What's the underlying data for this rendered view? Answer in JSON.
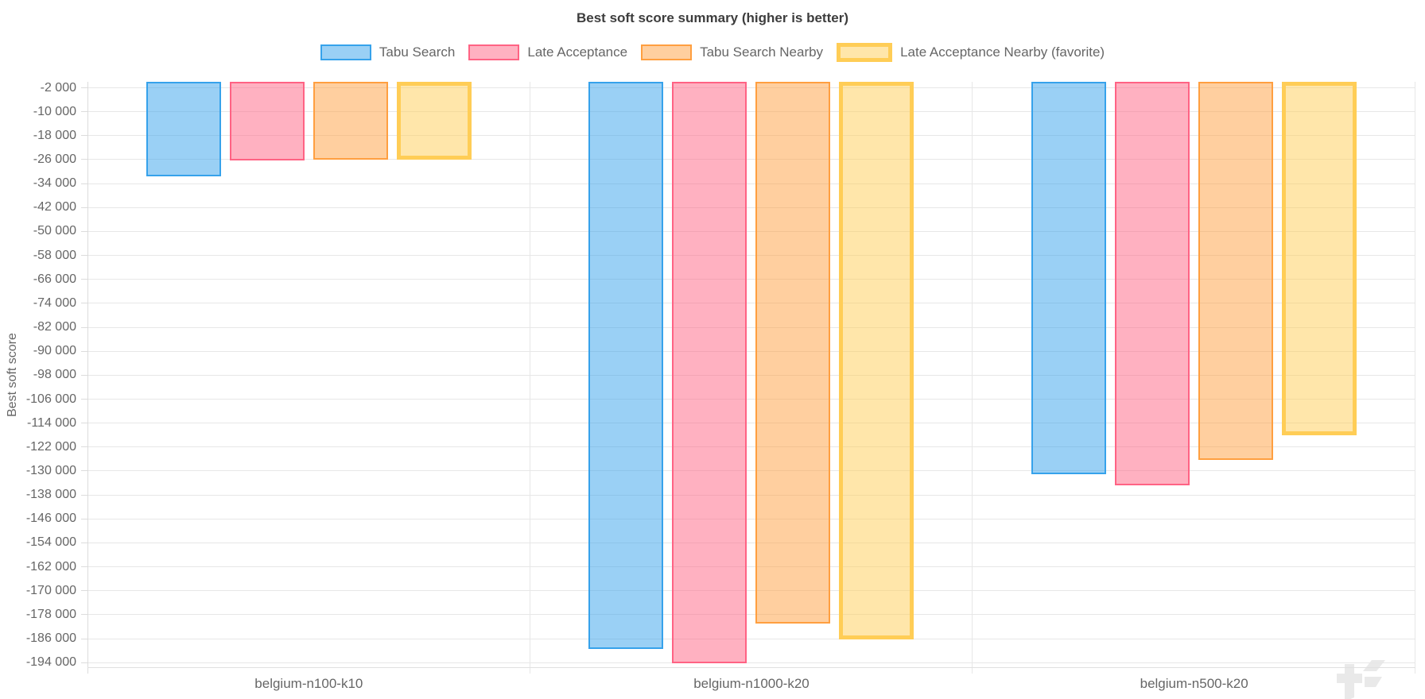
{
  "chart_data": {
    "type": "bar",
    "title": "Best soft score summary (higher is better)",
    "ylabel": "Best soft score",
    "categories": [
      "belgium-n100-k10",
      "belgium-n1000-k20",
      "belgium-n500-k20"
    ],
    "series": [
      {
        "name": "Tabu Search",
        "fill": "rgba(54,162,235,0.5)",
        "border": "#36a2eb",
        "border_width": 2,
        "favorite": false,
        "values": [
          -31500,
          -189500,
          -131000
        ]
      },
      {
        "name": "Late Acceptance",
        "fill": "rgba(255,99,132,0.5)",
        "border": "#ff6384",
        "border_width": 2,
        "favorite": false,
        "values": [
          -26300,
          -194300,
          -134700
        ]
      },
      {
        "name": "Tabu Search Nearby",
        "fill": "rgba(255,159,64,0.5)",
        "border": "#ff9f40",
        "border_width": 2,
        "favorite": false,
        "values": [
          -25900,
          -181000,
          -126300
        ]
      },
      {
        "name": "Late Acceptance Nearby (favorite)",
        "fill": "rgba(255,205,86,0.5)",
        "border": "#ffcd56",
        "border_width": 5,
        "favorite": true,
        "values": [
          -26100,
          -186200,
          -118000
        ]
      }
    ],
    "ylim": [
      -195800,
      0
    ],
    "yticks": [
      -2000,
      -10000,
      -18000,
      -26000,
      -34000,
      -42000,
      -50000,
      -58000,
      -66000,
      -74000,
      -82000,
      -90000,
      -98000,
      -106000,
      -114000,
      -122000,
      -130000,
      -138000,
      -146000,
      -154000,
      -162000,
      -170000,
      -178000,
      -186000,
      -194000
    ],
    "ytick_labels": [
      "-2 000",
      "-10 000",
      "-18 000",
      "-26 000",
      "-34 000",
      "-42 000",
      "-50 000",
      "-58 000",
      "-66 000",
      "-74 000",
      "-82 000",
      "-90 000",
      "-98 000",
      "-106 000",
      "-114 000",
      "-122 000",
      "-130 000",
      "-138 000",
      "-146 000",
      "-154 000",
      "-162 000",
      "-170 000",
      "-178 000",
      "-186 000",
      "-194 000"
    ],
    "grid": true,
    "legend_position": "top"
  },
  "watermark": {
    "text": "timefold"
  },
  "colors": {
    "axis_text": "#666666",
    "grid": "#e7e7e7",
    "title_text": "#3d3d3d",
    "watermark": "#ececec"
  }
}
